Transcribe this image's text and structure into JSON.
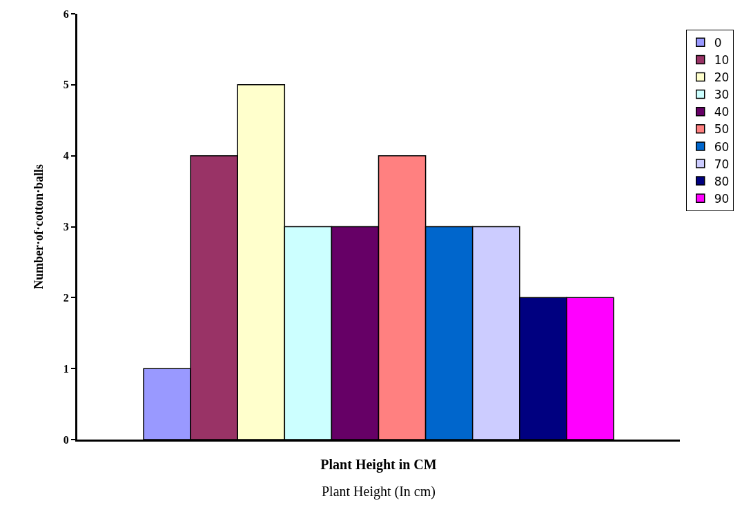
{
  "chart_data": {
    "type": "bar",
    "xlabel": "Plant Height in CM",
    "ylabel": "Number·of·cotton·balls",
    "categories": [
      null
    ],
    "series": [
      {
        "name": "0",
        "color": "#9999ff",
        "values": [
          1
        ]
      },
      {
        "name": "10",
        "color": "#993366",
        "values": [
          4
        ]
      },
      {
        "name": "20",
        "color": "#ffffcc",
        "values": [
          5
        ]
      },
      {
        "name": "30",
        "color": "#ccffff",
        "values": [
          3
        ]
      },
      {
        "name": "40",
        "color": "#660066",
        "values": [
          3
        ]
      },
      {
        "name": "50",
        "color": "#ff8080",
        "values": [
          4
        ]
      },
      {
        "name": "60",
        "color": "#0066cc",
        "values": [
          3
        ]
      },
      {
        "name": "70",
        "color": "#ccccff",
        "values": [
          3
        ]
      },
      {
        "name": "80",
        "color": "#000080",
        "values": [
          2
        ]
      },
      {
        "name": "90",
        "color": "#ff00ff",
        "values": [
          2
        ]
      }
    ],
    "ylim": [
      0,
      6
    ],
    "yticks": [
      0,
      1,
      2,
      3,
      4,
      5,
      6
    ],
    "grid": false,
    "legend": "right",
    "annotations": [
      "Plant Height (In cm)"
    ]
  }
}
